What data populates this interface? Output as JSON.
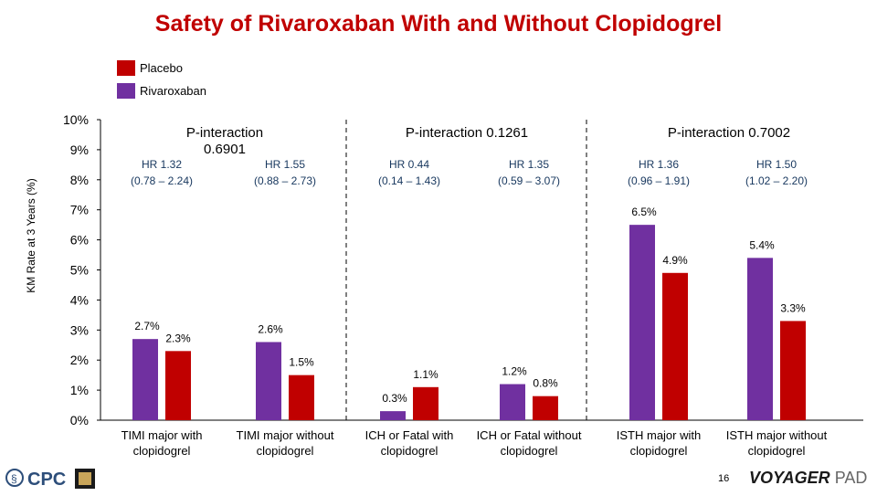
{
  "title": "Safety of Rivaroxaban With and Without Clopidogrel",
  "legend": [
    {
      "label": "Placebo",
      "color": "#c00000"
    },
    {
      "label": "Rivaroxaban",
      "color": "#7030a0"
    }
  ],
  "chart_data": {
    "type": "bar",
    "title": "Safety of Rivaroxaban With and Without Clopidogrel",
    "ylabel": "KM Rate at 3 Years (%)",
    "xlabel": "",
    "ylim": [
      0,
      10
    ],
    "yticks": [
      "0%",
      "1%",
      "2%",
      "3%",
      "4%",
      "5%",
      "6%",
      "7%",
      "8%",
      "9%",
      "10%"
    ],
    "grid": false,
    "legend_position": "top-left",
    "categories": [
      "TIMI major with clopidogrel",
      "TIMI major without clopidogrel",
      "ICH or Fatal with clopidogrel",
      "ICH or Fatal without clopidogrel",
      "ISTH major with clopidogrel",
      "ISTH major without clopidogrel"
    ],
    "series": [
      {
        "name": "Rivaroxaban",
        "color": "#7030a0",
        "values": [
          2.7,
          2.6,
          0.3,
          1.2,
          6.5,
          5.4
        ],
        "labels": [
          "2.7%",
          "2.6%",
          "0.3%",
          "1.2%",
          "6.5%",
          "5.4%"
        ]
      },
      {
        "name": "Placebo",
        "color": "#c00000",
        "values": [
          2.3,
          1.5,
          1.1,
          0.8,
          4.9,
          3.3
        ],
        "labels": [
          "2.3%",
          "1.5%",
          "1.1%",
          "0.8%",
          "4.9%",
          "3.3%"
        ]
      }
    ],
    "hr": [
      [
        "HR 1.32",
        "(0.78 – 2.24)"
      ],
      [
        "HR 1.55",
        "(0.88 – 2.73)"
      ],
      [
        "HR 0.44",
        "(0.14 – 1.43)"
      ],
      [
        "HR 1.35",
        "(0.59 – 3.07)"
      ],
      [
        "HR 1.36",
        "(0.96 – 1.91)"
      ],
      [
        "HR 1.50",
        "(1.02 – 2.20)"
      ]
    ],
    "p_interactions": [
      [
        "P-interaction",
        "0.6901"
      ],
      [
        "P-interaction 0.1261"
      ],
      [
        "P-interaction 0.7002"
      ]
    ]
  },
  "footer": {
    "page_number": "16",
    "logo_left": "CPC",
    "logo_right_main": "VOYAGER",
    "logo_right_sub": "PAD"
  }
}
